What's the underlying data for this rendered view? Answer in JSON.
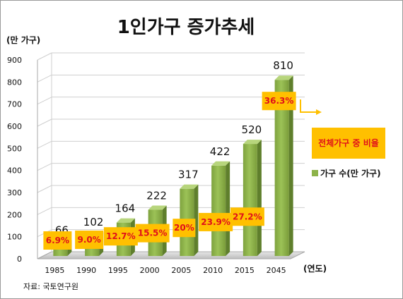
{
  "chart_data": {
    "type": "bar",
    "title": "1인가구 증가추세",
    "ylabel": "(만 가구)",
    "xlabel": "(연도)",
    "categories": [
      "1985",
      "1990",
      "1995",
      "2000",
      "2005",
      "2010",
      "2015",
      "2045"
    ],
    "series": [
      {
        "name": "가구 수(만 가구)",
        "values": [
          66,
          102,
          164,
          222,
          317,
          422,
          520,
          810
        ]
      }
    ],
    "percent_labels": [
      "6.9%",
      "9.0%",
      "12.7%",
      "15.5%",
      "20%",
      "23.9%",
      "27.2%",
      "36.3%"
    ],
    "yticks": [
      0,
      100,
      200,
      300,
      400,
      500,
      600,
      700,
      800,
      900
    ],
    "ylim": [
      0,
      900
    ],
    "grid": true,
    "legend": "right",
    "callout": "전체가구 중 비율",
    "source": "자료: 국토연구원",
    "colors": {
      "bar": "#8db34a",
      "bar_side": "#5f7f2c",
      "bar_top": "#b7d57c",
      "label_box": "#ffc000",
      "label_text": "#e0101a"
    }
  }
}
